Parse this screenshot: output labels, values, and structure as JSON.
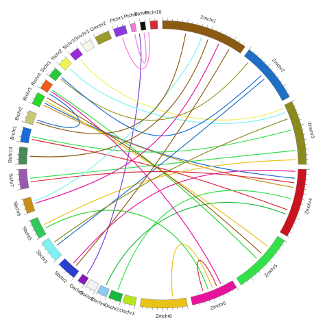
{
  "segments": [
    {
      "label": "Zmchr1",
      "color": "#8b5a12"
    },
    {
      "label": "Zmchr2",
      "color": "#1f6fc4"
    },
    {
      "label": "Zmchr3",
      "color": "#8a8a1e"
    },
    {
      "label": "Zmchr4",
      "color": "#c8141e"
    },
    {
      "label": "Zmchr5",
      "color": "#33e04a"
    },
    {
      "label": "Zmchr6",
      "color": "#e6149b"
    },
    {
      "label": "Zmchr8",
      "color": "#e8c31a"
    },
    {
      "label": "Oschr1",
      "color": "#b8e81a"
    },
    {
      "label": "Oschr2",
      "color": "#19b83a"
    },
    {
      "label": "Oschr6",
      "color": "#8fc8f0"
    },
    {
      "label": "Oschr8",
      "color": "#f2f2f2"
    },
    {
      "label": "Oschr9",
      "color": "#8a1ab8"
    },
    {
      "label": "Sbchr2",
      "color": "#2a3fd0"
    },
    {
      "label": "Sbchr3",
      "color": "#7ef2f2"
    },
    {
      "label": "Sbchr5",
      "color": "#33c85a"
    },
    {
      "label": "Sbchr6",
      "color": "#c8901a"
    },
    {
      "label": "Sichr7",
      "color": "#9a5ab0"
    },
    {
      "label": "Sichr10",
      "color": "#4a8a5a"
    },
    {
      "label": "Brchr1",
      "color": "#1a6ad8"
    },
    {
      "label": "Brchr2",
      "color": "#c8c87a"
    },
    {
      "label": "Brchr3",
      "color": "#2ad82a"
    },
    {
      "label": "Brchr4",
      "color": "#f05a1a"
    },
    {
      "label": "Sichr1",
      "color": "#2ac83a"
    },
    {
      "label": "Sichr2",
      "color": "#f0f05a"
    },
    {
      "label": "Sichr3",
      "color": "#9a2ad8"
    },
    {
      "label": "Gmchr1",
      "color": "#f5f5e8"
    },
    {
      "label": "Gmchr2",
      "color": "#9a9a2a"
    },
    {
      "label": "Ptchr1",
      "color": "#8a3ae0"
    },
    {
      "label": "Ptchr6",
      "color": "#f07ad8"
    },
    {
      "label": "Ptchr9",
      "color": "#111111"
    },
    {
      "label": "Ptchr10",
      "color": "#d82a3a"
    }
  ]
}
